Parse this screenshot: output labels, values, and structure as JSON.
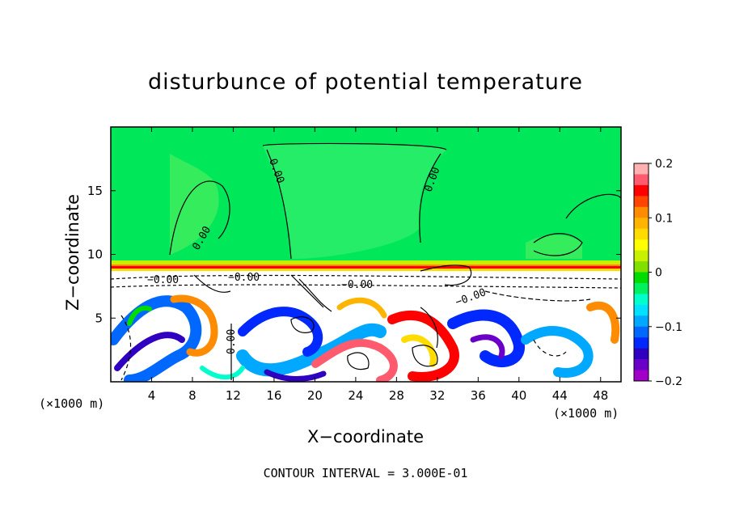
{
  "chart_data": {
    "type": "heatmap",
    "title": "disturbunce of potential temperature",
    "xlabel": "X−coordinate",
    "ylabel": "Z−coordinate",
    "x_unit_left": "(×1000 m)",
    "x_unit_right": "(×1000 m)",
    "xlim": [
      0,
      50
    ],
    "ylim": [
      0,
      20
    ],
    "x_ticks": [
      4,
      8,
      12,
      16,
      20,
      24,
      28,
      32,
      36,
      40,
      44,
      48
    ],
    "x_tick_labels": [
      "4",
      "8",
      "12",
      "16",
      "20",
      "24",
      "28",
      "32",
      "36",
      "40",
      "44",
      "48"
    ],
    "y_ticks": [
      5,
      10,
      15
    ],
    "y_tick_labels": [
      "5",
      "10",
      "15"
    ],
    "colorbar": {
      "range": [
        -0.2,
        0.2
      ],
      "tick_values": [
        0.2,
        0.1,
        0,
        -0.1,
        -0.2
      ],
      "tick_labels": [
        "0.2",
        "0.1",
        "0",
        "−0.1",
        "−0.2"
      ],
      "colors": [
        "#ffb0b0",
        "#ff5a6e",
        "#ff0000",
        "#ff4500",
        "#ff8c00",
        "#ffb400",
        "#ffdc00",
        "#ffff00",
        "#c8f000",
        "#80e000",
        "#00dc00",
        "#00f060",
        "#00ffcc",
        "#00e0ff",
        "#00a8ff",
        "#0068ff",
        "#0028ff",
        "#3000c0",
        "#6a00c8",
        "#a000c8"
      ]
    },
    "contour_labels": [
      "0.00",
      "0.00",
      "0.00",
      "−0.00",
      "−0.00",
      "−0.00",
      "−0.00",
      "0.00"
    ],
    "annotation": "CONTOUR INTERVAL =  3.000E-01",
    "grid": false
  }
}
